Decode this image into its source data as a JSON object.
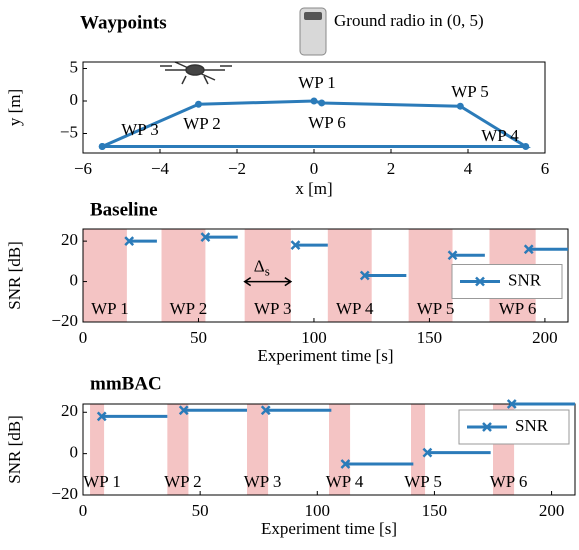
{
  "chart_data": [
    {
      "type": "line",
      "title": "Waypoints",
      "xlabel": "x [m]",
      "ylabel": "y [m]",
      "x": [
        -5.5,
        -3,
        0,
        0.2,
        3.8,
        5.5,
        -5.5
      ],
      "values": [
        -7,
        -0.5,
        0,
        -0.3,
        -0.8,
        -7,
        -7
      ],
      "color": "#2b7bb9",
      "xlim": [
        -6,
        6
      ],
      "xticks": [
        {
          "value": -6,
          "label": "−6"
        },
        {
          "value": -4,
          "label": "−4"
        },
        {
          "value": -2,
          "label": "−2"
        },
        0,
        2,
        4,
        6
      ],
      "ylim": [
        -8,
        6
      ],
      "yticks": [
        {
          "value": -5,
          "label": "−5"
        },
        0,
        5
      ],
      "annotations": [
        "WP 3",
        "WP 2",
        "WP 1",
        "WP 6",
        "WP 5",
        "WP 4"
      ],
      "radio_label": "Ground radio in (0, 5)"
    },
    {
      "type": "line",
      "title": "Baseline",
      "xlabel": "Experiment time [s]",
      "ylabel": "SNR [dB]",
      "x": [
        20,
        32,
        32,
        53,
        67,
        67,
        92,
        106,
        106,
        122,
        140,
        140,
        160,
        174,
        174,
        193,
        210
      ],
      "series": [
        {
          "name": "SNR",
          "color": "#2b7bb9",
          "values": [
            20,
            20,
            null,
            22,
            22,
            null,
            18,
            18,
            null,
            3,
            3,
            null,
            13,
            13,
            null,
            16,
            16
          ]
        }
      ],
      "xlim": [
        0,
        210
      ],
      "xticks": [
        0,
        50,
        100,
        150,
        200
      ],
      "ylim": [
        -20,
        26
      ],
      "yticks": [
        {
          "value": -20,
          "label": "−20"
        },
        0,
        20
      ],
      "legend": "center right",
      "region_color": "#f4c4c4",
      "regions": [
        {
          "label": "WP 1",
          "start": 0,
          "end": 19
        },
        {
          "label": "WP 2",
          "start": 34,
          "end": 53
        },
        {
          "label": "WP 3",
          "start": 70,
          "end": 90
        },
        {
          "label": "WP 4",
          "start": 106,
          "end": 125
        },
        {
          "label": "WP 5",
          "start": 141,
          "end": 160
        },
        {
          "label": "WP 6",
          "start": 176,
          "end": 196
        }
      ],
      "annotation": {
        "symbol": "Δ",
        "subscript": "s"
      }
    },
    {
      "type": "line",
      "title": "mmBAC",
      "xlabel": "Experiment time [s]",
      "ylabel": "SNR [dB]",
      "x": [
        8,
        36,
        36,
        43,
        70,
        70,
        78,
        106,
        106,
        112,
        141,
        141,
        147,
        174,
        174,
        183,
        210
      ],
      "series": [
        {
          "name": "SNR",
          "color": "#2b7bb9",
          "values": [
            18,
            18,
            null,
            21,
            21,
            null,
            21,
            21,
            null,
            -5,
            -5,
            null,
            0.5,
            0.5,
            null,
            24,
            24
          ]
        }
      ],
      "xlim": [
        0,
        210
      ],
      "xticks": [
        0,
        50,
        100,
        150,
        200
      ],
      "ylim": [
        -20,
        24
      ],
      "yticks": [
        {
          "value": -20,
          "label": "−20"
        },
        0,
        20
      ],
      "legend": "upper right",
      "region_color": "#f4c4c4",
      "regions": [
        {
          "label": "WP 1",
          "start": 3,
          "end": 9
        },
        {
          "label": "WP 2",
          "start": 36,
          "end": 45
        },
        {
          "label": "WP 3",
          "start": 70,
          "end": 79
        },
        {
          "label": "WP 4",
          "start": 105,
          "end": 114
        },
        {
          "label": "WP 5",
          "start": 140,
          "end": 146
        },
        {
          "label": "WP 6",
          "start": 175,
          "end": 184
        }
      ]
    }
  ]
}
